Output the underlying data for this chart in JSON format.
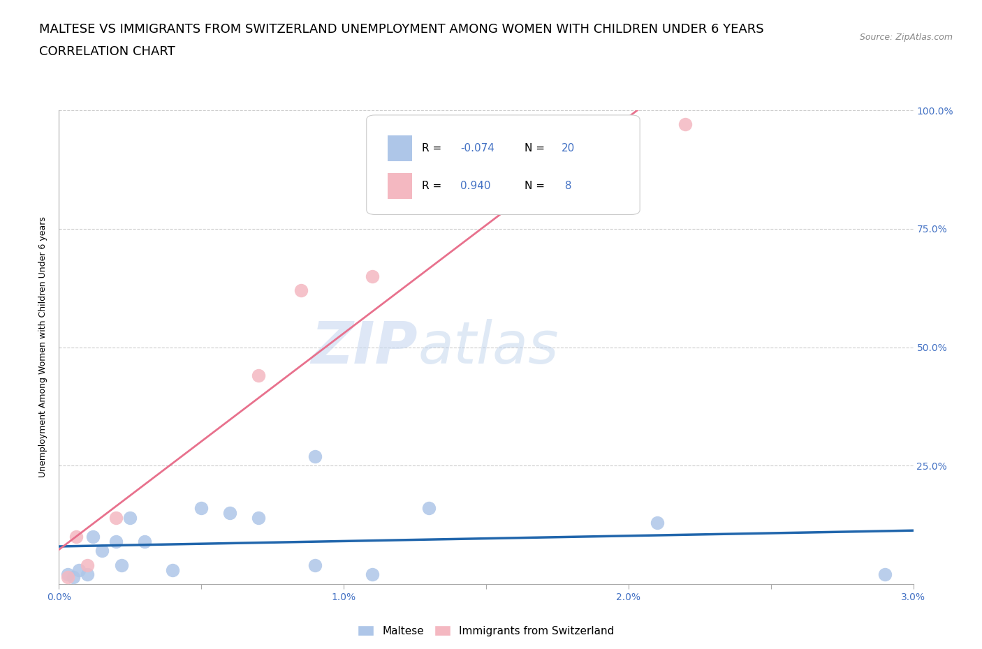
{
  "title_line1": "MALTESE VS IMMIGRANTS FROM SWITZERLAND UNEMPLOYMENT AMONG WOMEN WITH CHILDREN UNDER 6 YEARS",
  "title_line2": "CORRELATION CHART",
  "source": "Source: ZipAtlas.com",
  "ylabel": "Unemployment Among Women with Children Under 6 years",
  "xlim": [
    0,
    0.03
  ],
  "ylim": [
    0,
    1.0
  ],
  "xticks": [
    0.0,
    0.005,
    0.01,
    0.015,
    0.02,
    0.025,
    0.03
  ],
  "xticklabels": [
    "0.0%",
    "",
    "1.0%",
    "",
    "2.0%",
    "",
    "3.0%"
  ],
  "yticks": [
    0.0,
    0.25,
    0.5,
    0.75,
    1.0
  ],
  "yticklabels": [
    "",
    "25.0%",
    "50.0%",
    "75.0%",
    "100.0%"
  ],
  "maltese_x": [
    0.0003,
    0.0005,
    0.0007,
    0.001,
    0.0012,
    0.0015,
    0.002,
    0.0022,
    0.0025,
    0.003,
    0.004,
    0.005,
    0.006,
    0.007,
    0.009,
    0.009,
    0.011,
    0.013,
    0.021,
    0.029
  ],
  "maltese_y": [
    0.02,
    0.015,
    0.03,
    0.02,
    0.1,
    0.07,
    0.09,
    0.04,
    0.14,
    0.09,
    0.03,
    0.16,
    0.15,
    0.14,
    0.27,
    0.04,
    0.02,
    0.16,
    0.13,
    0.02
  ],
  "swiss_x": [
    0.0003,
    0.0006,
    0.001,
    0.002,
    0.007,
    0.0085,
    0.011,
    0.022
  ],
  "swiss_y": [
    0.015,
    0.1,
    0.04,
    0.14,
    0.44,
    0.62,
    0.65,
    0.97
  ],
  "maltese_color": "#aec6e8",
  "swiss_color": "#f4b8c1",
  "maltese_line_color": "#2166ac",
  "swiss_line_color": "#e8718d",
  "maltese_R": -0.074,
  "maltese_N": 20,
  "swiss_R": 0.94,
  "swiss_N": 8,
  "watermark_zip": "ZIP",
  "watermark_atlas": "atlas",
  "grid_color": "#cccccc",
  "title_fontsize": 13,
  "label_fontsize": 9,
  "tick_fontsize": 10,
  "axis_color": "#4472c4",
  "background_color": "#ffffff"
}
